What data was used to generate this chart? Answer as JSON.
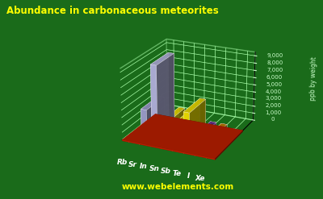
{
  "title": "Abundance in carbonaceous meteorites",
  "ylabel": "ppb by weight",
  "watermark": "www.webelements.com",
  "categories": [
    "Rb",
    "Sr",
    "In",
    "Sn",
    "Sb",
    "Te",
    "I",
    "Xe"
  ],
  "values": [
    2800,
    9100,
    1700,
    1500,
    3500,
    500,
    500,
    10
  ],
  "bar_colors": [
    "#aaaadd",
    "#c0c0ee",
    "#ffee00",
    "#ffee00",
    "#ffee00",
    "#7030a0",
    "#dd8800",
    "#ffcc00"
  ],
  "background_color": "#1a6b1a",
  "title_color": "#ffff00",
  "ylabel_color": "#ccffcc",
  "tick_color": "#ccffcc",
  "grid_color": "#aaffaa",
  "platform_color": "#cc2200",
  "label_color": "#ffffff",
  "watermark_color": "#ffff00",
  "ylim": [
    0,
    9500
  ],
  "elev": 22,
  "azim": -65
}
